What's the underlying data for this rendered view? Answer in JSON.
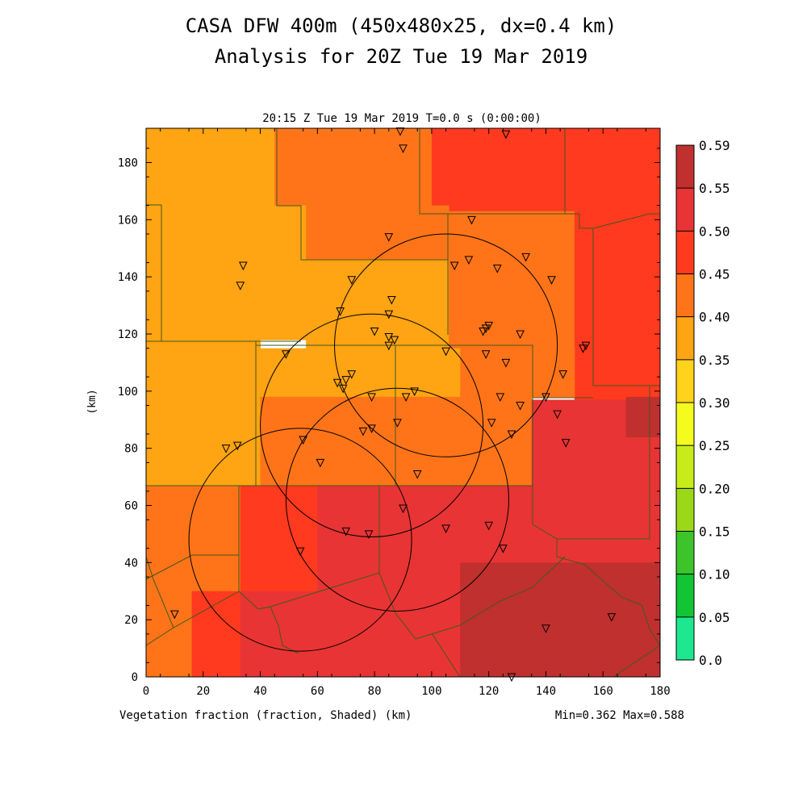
{
  "page": {
    "title_line1": "CASA DFW 400m (450x480x25, dx=0.4 km)",
    "title_line2": "Analysis for 20Z Tue 19 Mar 2019",
    "time_line": "20:15 Z Tue 19 Mar 2019    T=0.0 s (0:00:00)",
    "variable_label": "Vegetation fraction (fraction, Shaded)  (km)",
    "minmax_label": "Min=0.362 Max=0.588",
    "y_unit_label": "(km)"
  },
  "chart_data": {
    "type": "heatmap",
    "title": "CASA DFW 400m (450x480x25, dx=0.4 km)",
    "subtitle": "Analysis for 20Z Tue 19 Mar 2019",
    "xlabel": "(km)",
    "ylabel": "(km)",
    "xlim": [
      0,
      180
    ],
    "ylim": [
      0,
      192
    ],
    "x_ticks": [
      0,
      20,
      40,
      60,
      80,
      100,
      120,
      140,
      160,
      180
    ],
    "y_ticks": [
      0,
      20,
      40,
      60,
      80,
      100,
      120,
      140,
      160,
      180
    ],
    "grid": false,
    "legend": "right",
    "min": 0.362,
    "max": 0.588,
    "colorbar": {
      "labels": [
        "0.0",
        "0.05",
        "0.10",
        "0.15",
        "0.20",
        "0.25",
        "0.30",
        "0.35",
        "0.40",
        "0.45",
        "0.50",
        "0.55",
        "0.59"
      ],
      "colors": [
        "#1de890",
        "#11c534",
        "#3cc42a",
        "#9ad818",
        "#c8ec1a",
        "#f4fc1e",
        "#ffd21c",
        "#ffa412",
        "#ff7418",
        "#ff3a1e",
        "#e83434",
        "#c0302e",
        "#8b302e"
      ]
    },
    "regions": [
      {
        "x0": 0,
        "x1": 45,
        "y0": 165,
        "y1": 192,
        "value": 0.37
      },
      {
        "x0": 45,
        "x1": 100,
        "y0": 163,
        "y1": 192,
        "value": 0.42
      },
      {
        "x0": 100,
        "x1": 180,
        "y0": 163,
        "y1": 192,
        "value": 0.47
      },
      {
        "x0": 0,
        "x1": 56,
        "y0": 118,
        "y1": 165,
        "value": 0.37
      },
      {
        "x0": 56,
        "x1": 106,
        "y0": 146,
        "y1": 165,
        "value": 0.42
      },
      {
        "x0": 56,
        "x1": 106,
        "y0": 115,
        "y1": 146,
        "value": 0.37
      },
      {
        "x0": 106,
        "x1": 150,
        "y0": 115,
        "y1": 163,
        "value": 0.42
      },
      {
        "x0": 150,
        "x1": 180,
        "y0": 97,
        "y1": 163,
        "value": 0.47
      },
      {
        "x0": 0,
        "x1": 40,
        "y0": 67,
        "y1": 118,
        "value": 0.37
      },
      {
        "x0": 40,
        "x1": 87,
        "y0": 98,
        "y1": 115,
        "value": 0.37
      },
      {
        "x0": 87,
        "x1": 110,
        "y0": 98,
        "y1": 115,
        "value": 0.37
      },
      {
        "x0": 110,
        "x1": 150,
        "y0": 98,
        "y1": 115,
        "value": 0.42
      },
      {
        "x0": 40,
        "x1": 135,
        "y0": 67,
        "y1": 98,
        "value": 0.42
      },
      {
        "x0": 135,
        "x1": 180,
        "y0": 67,
        "y1": 97,
        "value": 0.51
      },
      {
        "x0": 0,
        "x1": 33,
        "y0": 30,
        "y1": 67,
        "value": 0.42
      },
      {
        "x0": 33,
        "x1": 60,
        "y0": 30,
        "y1": 67,
        "value": 0.47
      },
      {
        "x0": 60,
        "x1": 135,
        "y0": 30,
        "y1": 67,
        "value": 0.51
      },
      {
        "x0": 135,
        "x1": 180,
        "y0": 40,
        "y1": 67,
        "value": 0.51
      },
      {
        "x0": 0,
        "x1": 16,
        "y0": 0,
        "y1": 30,
        "value": 0.42
      },
      {
        "x0": 16,
        "x1": 33,
        "y0": 0,
        "y1": 30,
        "value": 0.47
      },
      {
        "x0": 33,
        "x1": 110,
        "y0": 0,
        "y1": 30,
        "value": 0.51
      },
      {
        "x0": 110,
        "x1": 180,
        "y0": 0,
        "y1": 40,
        "value": 0.56
      },
      {
        "x0": 168,
        "x1": 180,
        "y0": 84,
        "y1": 98,
        "value": 0.56
      }
    ],
    "rings": [
      {
        "cx": 105,
        "cy": 116,
        "r": 39
      },
      {
        "cx": 79,
        "cy": 88,
        "r": 39
      },
      {
        "cx": 88,
        "cy": 62,
        "r": 39
      },
      {
        "cx": 54,
        "cy": 48,
        "r": 39
      }
    ],
    "stations": [
      [
        89,
        191
      ],
      [
        126,
        190
      ],
      [
        90,
        185
      ],
      [
        34,
        144
      ],
      [
        33,
        137
      ],
      [
        85,
        154
      ],
      [
        114,
        160
      ],
      [
        113,
        146
      ],
      [
        108,
        144
      ],
      [
        123,
        143
      ],
      [
        133,
        147
      ],
      [
        142,
        139
      ],
      [
        72,
        139
      ],
      [
        86,
        132
      ],
      [
        85,
        127
      ],
      [
        68,
        128
      ],
      [
        80,
        121
      ],
      [
        85,
        119
      ],
      [
        87,
        118
      ],
      [
        85,
        116
      ],
      [
        118,
        121
      ],
      [
        119,
        122
      ],
      [
        120,
        123
      ],
      [
        131,
        120
      ],
      [
        126,
        110
      ],
      [
        119,
        113
      ],
      [
        105,
        114
      ],
      [
        153,
        115
      ],
      [
        154,
        116
      ],
      [
        49,
        113
      ],
      [
        72,
        106
      ],
      [
        70,
        104
      ],
      [
        67,
        103
      ],
      [
        69,
        101
      ],
      [
        79,
        98
      ],
      [
        94,
        100
      ],
      [
        91,
        98
      ],
      [
        124,
        98
      ],
      [
        131,
        95
      ],
      [
        144,
        92
      ],
      [
        146,
        106
      ],
      [
        140,
        98
      ],
      [
        88,
        89
      ],
      [
        79,
        87
      ],
      [
        76,
        86
      ],
      [
        121,
        89
      ],
      [
        128,
        85
      ],
      [
        147,
        82
      ],
      [
        55,
        83
      ],
      [
        32,
        81
      ],
      [
        28,
        80
      ],
      [
        61,
        75
      ],
      [
        95,
        71
      ],
      [
        90,
        59
      ],
      [
        70,
        51
      ],
      [
        78,
        50
      ],
      [
        105,
        52
      ],
      [
        120,
        53
      ],
      [
        125,
        45
      ],
      [
        54,
        44
      ],
      [
        10,
        22
      ],
      [
        140,
        17
      ],
      [
        163,
        21
      ],
      [
        128,
        0
      ]
    ]
  }
}
